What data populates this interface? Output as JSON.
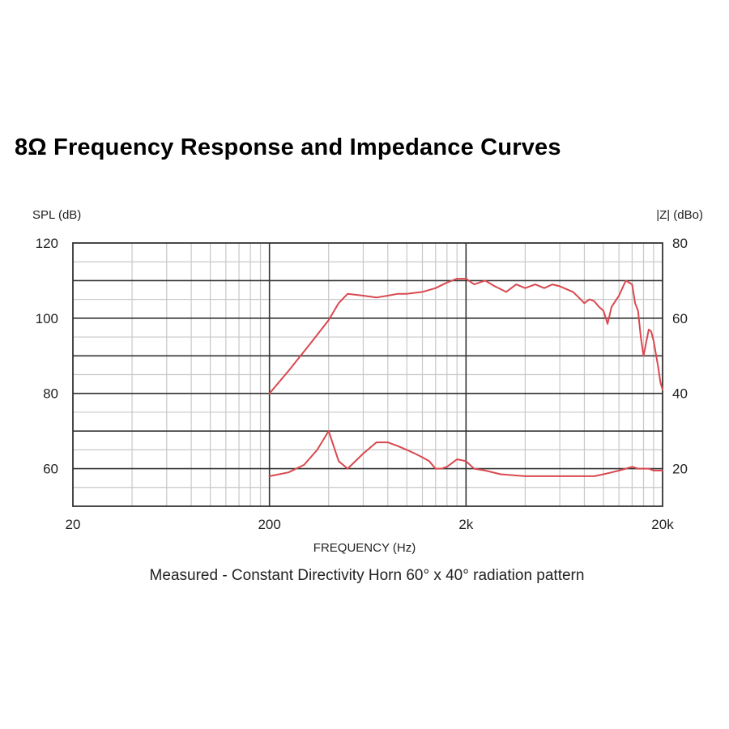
{
  "title": "8Ω Frequency Response and Impedance Curves",
  "chart_data": {
    "type": "line",
    "title": "8Ω Frequency Response and Impedance Curves",
    "subtitle": "Measured - Constant Directivity Horn 60° x 40° radiation pattern",
    "xlabel": "FREQUENCY (Hz)",
    "ylabel_left": "SPL (dB)",
    "ylabel_right": "|Z| (dBo)",
    "x_scale": "log",
    "xlim": [
      20,
      20000
    ],
    "x_ticks": [
      20,
      200,
      2000,
      20000
    ],
    "x_tick_labels": [
      "20",
      "200",
      "2k",
      "20k"
    ],
    "ylim_left": [
      50,
      120
    ],
    "y_ticks_left": [
      60,
      80,
      100,
      120
    ],
    "y_tick_labels_left": [
      "60",
      "80",
      "100",
      "120"
    ],
    "ylim_right": [
      10,
      80
    ],
    "y_ticks_right": [
      20,
      40,
      60,
      80
    ],
    "y_tick_labels_right": [
      "20",
      "40",
      "60",
      "80"
    ],
    "grid": true,
    "colors": {
      "series": "#d9484f",
      "grid_minor": "#c8c8c8",
      "grid_major": "#333333"
    },
    "series": [
      {
        "axis": "left",
        "x": [
          200,
          250,
          320,
          400,
          450,
          500,
          600,
          700,
          800,
          900,
          1000,
          1200,
          1400,
          1600,
          1800,
          2000,
          2200,
          2500,
          2800,
          3200,
          3600,
          4000,
          4500,
          5000,
          5500,
          6000,
          7000,
          7500,
          8000,
          8500,
          9000,
          9500,
          10000,
          10500,
          11000,
          12000,
          13000,
          14000,
          14500,
          15000,
          15500,
          16000,
          17000,
          17500,
          18000,
          19000,
          19500,
          20000
        ],
        "y": [
          80,
          86,
          93,
          99.5,
          104,
          106.5,
          106,
          105.5,
          106,
          106.5,
          106.5,
          107,
          108,
          109.5,
          110.5,
          110.5,
          109,
          110,
          108.5,
          107,
          109,
          108,
          109,
          108,
          109,
          108.5,
          107,
          105.5,
          104,
          105,
          104.5,
          103,
          102,
          98.5,
          103,
          106,
          110,
          109,
          104,
          102,
          95,
          90,
          97,
          96.5,
          94,
          87,
          83,
          81
        ]
      },
      {
        "axis": "right",
        "x": [
          200,
          250,
          300,
          350,
          400,
          450,
          500,
          600,
          700,
          800,
          900,
          1000,
          1100,
          1200,
          1300,
          1400,
          1500,
          1600,
          1700,
          1800,
          2000,
          2200,
          2500,
          3000,
          4000,
          5000,
          6000,
          7000,
          8000,
          9000,
          10000,
          11000,
          12000,
          13000,
          14000,
          15000,
          16000,
          17000,
          18000,
          19000,
          20000
        ],
        "y": [
          18,
          19,
          21,
          25,
          30,
          22,
          20,
          24,
          27,
          27,
          26,
          25,
          24,
          23,
          22,
          20,
          20,
          20.5,
          21.5,
          22.5,
          22,
          20,
          19.5,
          18.5,
          18,
          18,
          18,
          18,
          18,
          18,
          18.5,
          19,
          19.5,
          20,
          20.5,
          20,
          20,
          20,
          19.5,
          19.5,
          19.5
        ]
      }
    ]
  }
}
